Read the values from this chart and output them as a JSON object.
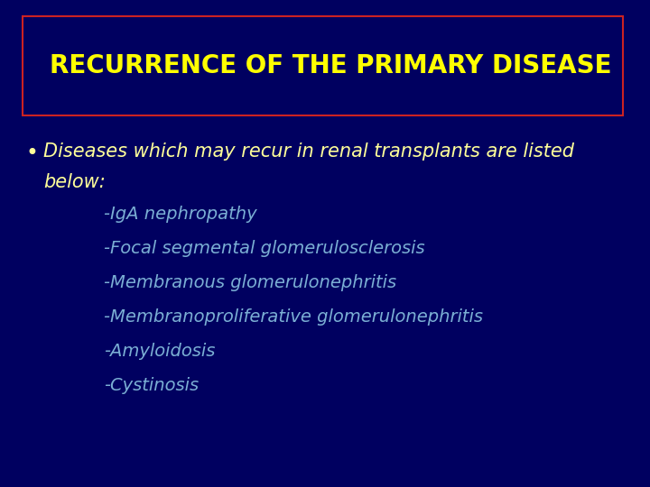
{
  "background_color": "#000060",
  "title": "RECURRENCE OF THE PRIMARY DISEASE",
  "title_color": "#FFFF00",
  "title_box_edge_color": "#CC2222",
  "title_fontsize": 20,
  "bullet_line1": "Diseases which may recur in renal transplants are listed",
  "bullet_line2": "below:",
  "bullet_color": "#FFFF99",
  "bullet_fontsize": 15,
  "list_items": [
    "-IgA nephropathy",
    "-Focal segmental glomerulosclerosis",
    "-Membranous glomerulonephritis",
    "-Membranoproliferative glomerulonephritis",
    "-Amyloidosis",
    "-Cystinosis"
  ],
  "list_color": "#7BAFD4",
  "list_fontsize": 14
}
